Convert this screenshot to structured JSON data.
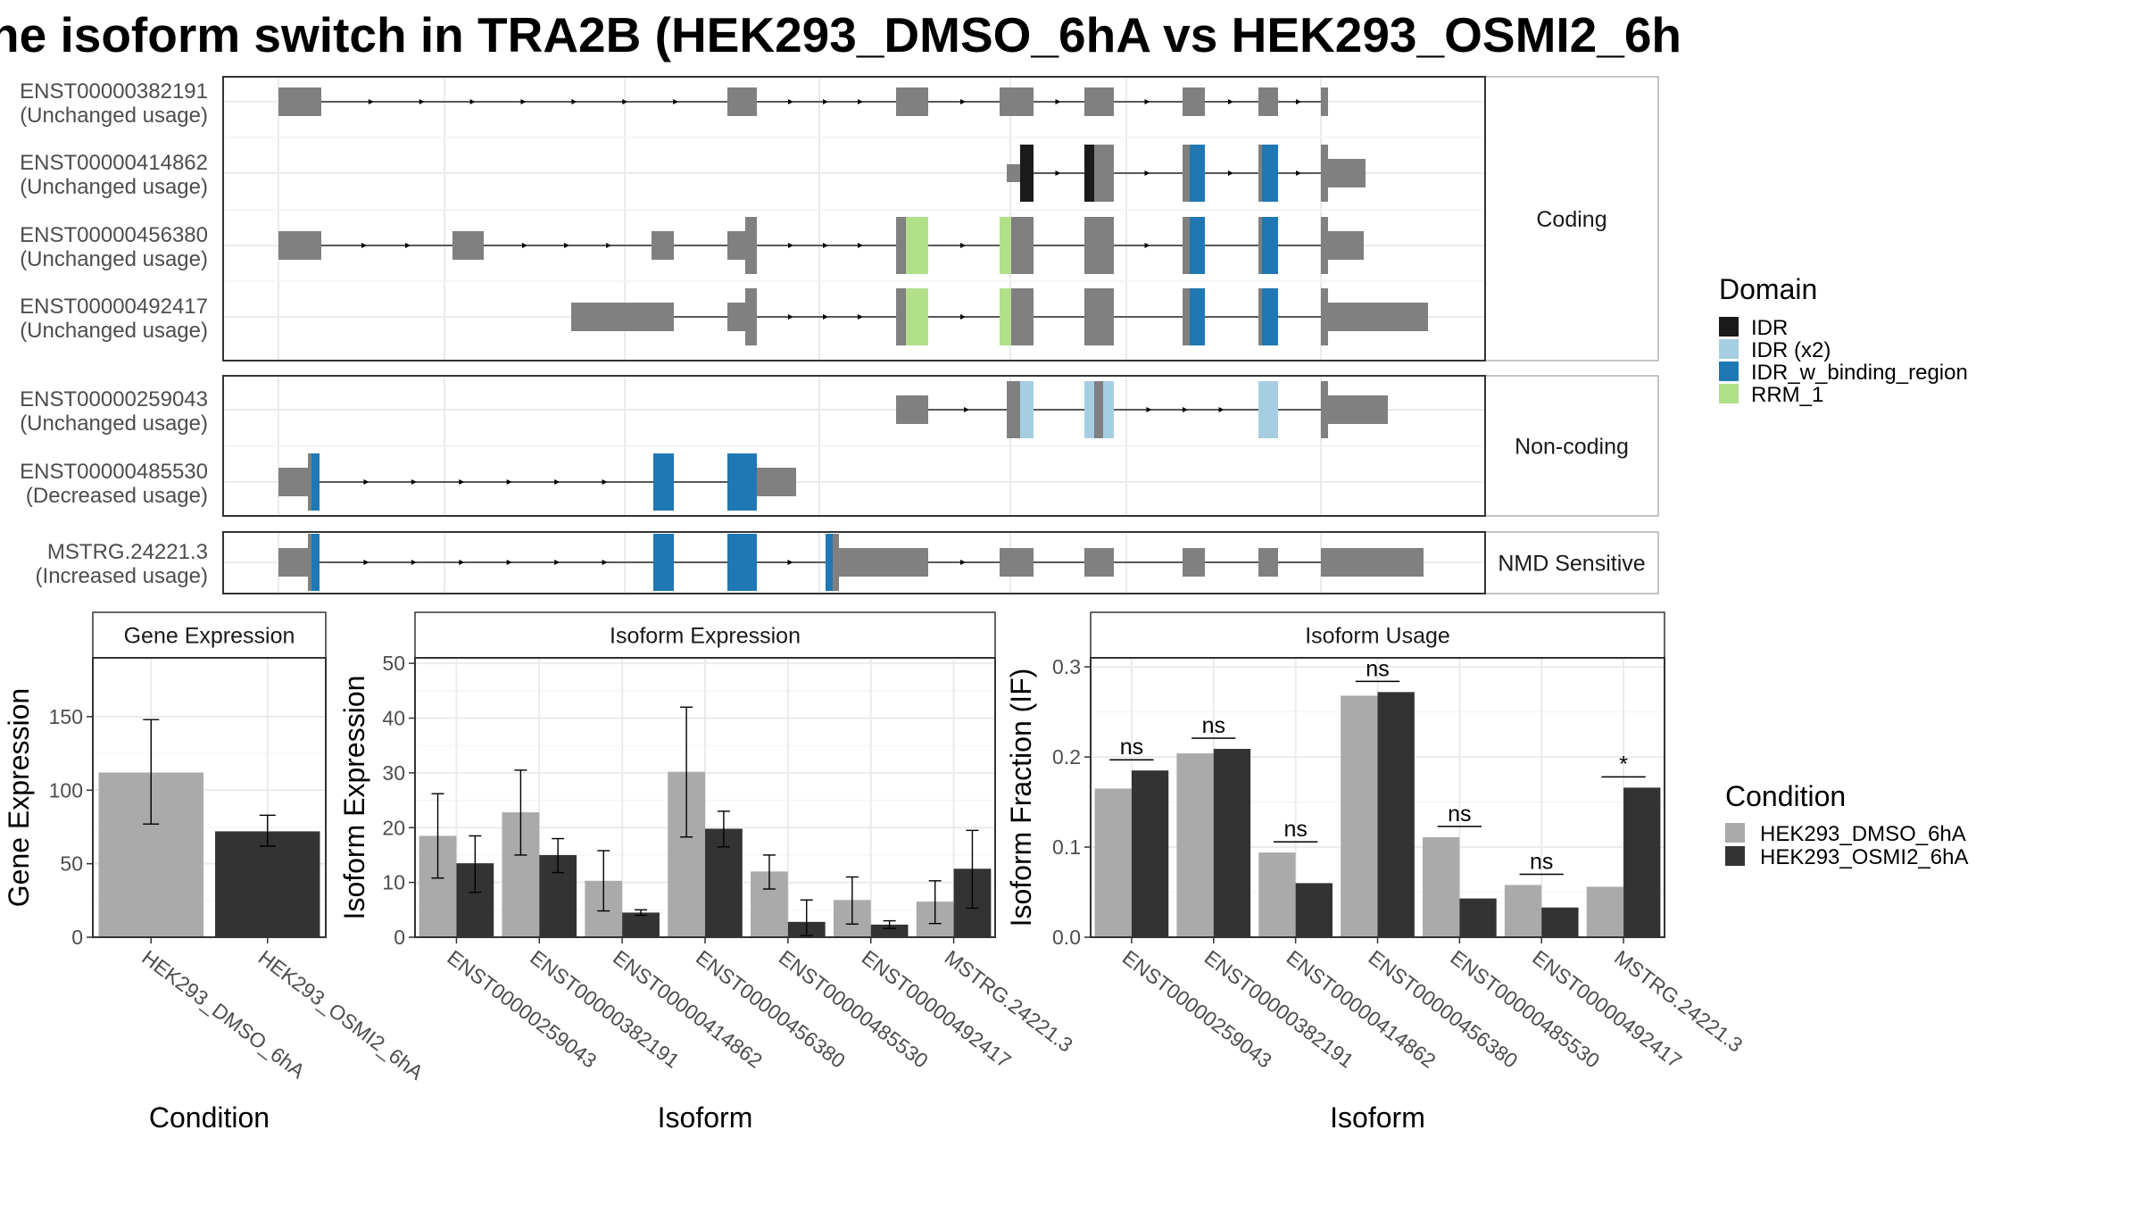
{
  "title": "ne isoform switch in TRA2B (HEK293_DMSO_6hA vs HEK293_OSMI2_6h",
  "colors": {
    "exon": "#808080",
    "IDR": "#1a1a1a",
    "IDR (x2)": "#a6cee3",
    "IDR_w_binding_region": "#1f78b4",
    "RRM_1": "#b2df8a",
    "DMSO": "#aaaaaa",
    "OSMI2": "#333333"
  },
  "structure": {
    "facets": [
      "Coding",
      "Non-coding",
      "NMD Sensitive"
    ],
    "isoforms": [
      {
        "id": "ENST00000382191",
        "usage": "(Unchanged usage)",
        "facet": 0
      },
      {
        "id": "ENST00000414862",
        "usage": "(Unchanged usage)",
        "facet": 0
      },
      {
        "id": "ENST00000456380",
        "usage": "(Unchanged usage)",
        "facet": 0
      },
      {
        "id": "ENST00000492417",
        "usage": "(Unchanged usage)",
        "facet": 0
      },
      {
        "id": "ENST00000259043",
        "usage": "(Unchanged usage)",
        "facet": 1
      },
      {
        "id": "ENST00000485530",
        "usage": "(Decreased usage)",
        "facet": 1
      },
      {
        "id": "MSTRG.24221.3",
        "usage": "(Increased usage)",
        "facet": 2
      }
    ]
  },
  "legend_domain": {
    "title": "Domain",
    "items": [
      {
        "label": "IDR",
        "color": "#1a1a1a"
      },
      {
        "label": "IDR (x2)",
        "color": "#a6cee3"
      },
      {
        "label": "IDR_w_binding_region",
        "color": "#1f78b4"
      },
      {
        "label": "RRM_1",
        "color": "#b2df8a"
      }
    ]
  },
  "legend_condition": {
    "title": "Condition",
    "items": [
      {
        "label": "HEK293_DMSO_6hA",
        "color": "#aaaaaa"
      },
      {
        "label": "HEK293_OSMI2_6hA",
        "color": "#333333"
      }
    ]
  },
  "chart_data": [
    {
      "type": "bar",
      "title": "Gene Expression",
      "xlabel": "Condition",
      "ylabel": "Gene Expression",
      "ylim": [
        0,
        190
      ],
      "yticks": [
        0,
        50,
        100,
        150
      ],
      "categories": [
        "HEK293_DMSO_6hA",
        "HEK293_OSMI2_6hA"
      ],
      "values": [
        112,
        72
      ],
      "error": [
        [
          77,
          148
        ],
        [
          62,
          83
        ]
      ]
    },
    {
      "type": "bar",
      "title": "Isoform Expression",
      "xlabel": "Isoform",
      "ylabel": "Isoform Expression",
      "ylim": [
        0,
        51
      ],
      "yticks": [
        0,
        10,
        20,
        30,
        40,
        50
      ],
      "categories": [
        "ENST00000259043",
        "ENST00000382191",
        "ENST00000414862",
        "ENST00000456380",
        "ENST00000485530",
        "ENST00000492417",
        "MSTRG.24221.3"
      ],
      "series": [
        {
          "name": "HEK293_DMSO_6hA",
          "values": [
            18.5,
            22.8,
            10.3,
            30.2,
            12.0,
            6.8,
            6.5
          ],
          "error": [
            [
              10.8,
              26.2
            ],
            [
              15.0,
              30.5
            ],
            [
              4.8,
              15.8
            ],
            [
              18.3,
              42.0
            ],
            [
              8.8,
              15.0
            ],
            [
              2.4,
              11.0
            ],
            [
              2.5,
              10.3
            ]
          ]
        },
        {
          "name": "HEK293_OSMI2_6hA",
          "values": [
            13.5,
            15.0,
            4.5,
            19.8,
            2.8,
            2.3,
            12.5
          ],
          "error": [
            [
              8.2,
              18.5
            ],
            [
              11.8,
              18.0
            ],
            [
              4.0,
              5.0
            ],
            [
              16.5,
              23.0
            ],
            [
              0.3,
              6.8
            ],
            [
              1.6,
              3.0
            ],
            [
              5.3,
              19.5
            ]
          ]
        }
      ]
    },
    {
      "type": "bar",
      "title": "Isoform Usage",
      "xlabel": "Isoform",
      "ylabel": "Isoform Fraction (IF)",
      "ylim": [
        0,
        0.31
      ],
      "yticks": [
        0.0,
        0.1,
        0.2,
        0.3
      ],
      "yticklabels": [
        "0.0",
        "0.1",
        "0.2",
        "0.3"
      ],
      "categories": [
        "ENST00000259043",
        "ENST00000382191",
        "ENST00000414862",
        "ENST00000456380",
        "ENST00000485530",
        "ENST00000492417",
        "MSTRG.24221.3"
      ],
      "series": [
        {
          "name": "HEK293_DMSO_6hA",
          "values": [
            0.165,
            0.204,
            0.094,
            0.268,
            0.111,
            0.058,
            0.056
          ]
        },
        {
          "name": "HEK293_OSMI2_6hA",
          "values": [
            0.185,
            0.209,
            0.06,
            0.272,
            0.043,
            0.033,
            0.166
          ]
        }
      ],
      "significance": [
        "ns",
        "ns",
        "ns",
        "ns",
        "ns",
        "ns",
        "*"
      ]
    }
  ]
}
